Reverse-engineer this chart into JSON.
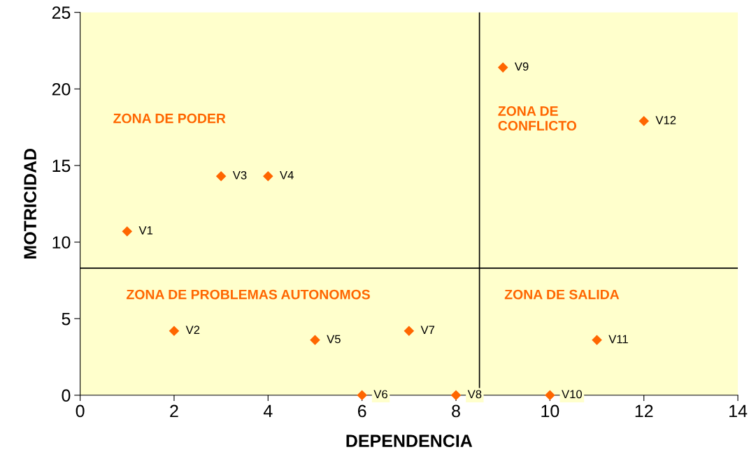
{
  "chart_data": {
    "type": "scatter",
    "xlabel": "DEPENDENCIA",
    "ylabel": "MOTRICIDAD",
    "xlim": [
      0,
      14
    ],
    "xticks": [
      0,
      2,
      4,
      6,
      8,
      10,
      12,
      14
    ],
    "ylim": [
      0,
      25
    ],
    "yticks": [
      0,
      5,
      10,
      15,
      20,
      25
    ],
    "grid": false,
    "legend": false,
    "marker": "diamond",
    "series": [
      {
        "name": "V1",
        "color": "#ff6600",
        "x": [
          1
        ],
        "values": [
          10.7
        ]
      },
      {
        "name": "V2",
        "color": "#ff6600",
        "x": [
          2
        ],
        "values": [
          4.2
        ]
      },
      {
        "name": "V3",
        "color": "#ff6600",
        "x": [
          3
        ],
        "values": [
          14.3
        ]
      },
      {
        "name": "V4",
        "color": "#ff6600",
        "x": [
          4
        ],
        "values": [
          14.3
        ]
      },
      {
        "name": "V5",
        "color": "#ff6600",
        "x": [
          5
        ],
        "values": [
          3.6
        ]
      },
      {
        "name": "V6",
        "color": "#ff6600",
        "x": [
          6
        ],
        "values": [
          0
        ]
      },
      {
        "name": "V7",
        "color": "#ff6600",
        "x": [
          7
        ],
        "values": [
          4.2
        ]
      },
      {
        "name": "V8",
        "color": "#ff6600",
        "x": [
          8
        ],
        "values": [
          0
        ]
      },
      {
        "name": "V9",
        "color": "#ff6600",
        "x": [
          9
        ],
        "values": [
          21.4
        ]
      },
      {
        "name": "V10",
        "color": "#ff6600",
        "x": [
          10
        ],
        "values": [
          0
        ]
      },
      {
        "name": "V11",
        "color": "#ff6600",
        "x": [
          11
        ],
        "values": [
          3.6
        ]
      },
      {
        "name": "V12",
        "color": "#ff6600",
        "x": [
          12
        ],
        "values": [
          17.9
        ]
      }
    ],
    "ref_lines": [
      {
        "axis": "x",
        "value": 8.5,
        "color": "#000000"
      },
      {
        "axis": "y",
        "value": 8.3,
        "color": "#000000"
      }
    ],
    "annotations": [
      "ZONA DE PODER",
      "ZONA DE\nCONFLICTO",
      "ZONA DE PROBLEMAS AUTONOMOS",
      "ZONA DE SALIDA"
    ]
  }
}
